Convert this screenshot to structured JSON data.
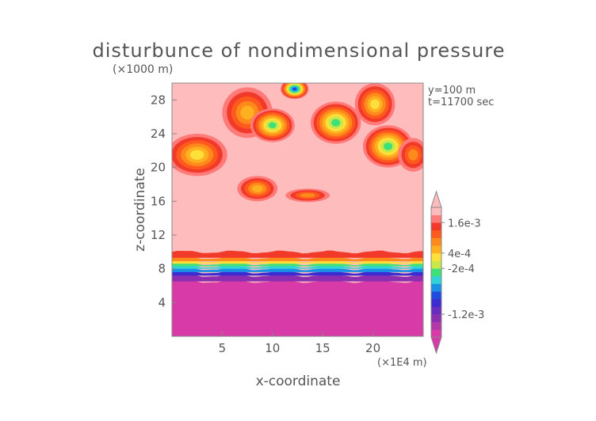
{
  "chart_data": {
    "type": "heatmap",
    "title": "disturbunce of nondimensional pressure",
    "y_scale_note": "(×1000 m)",
    "x_scale_note": "(×1E4 m)",
    "xlabel": "x-coordinate",
    "ylabel": "z-coordinate",
    "info_lines": [
      "y=100 m",
      "t=11700 sec"
    ],
    "xlim": [
      0,
      25
    ],
    "ylim": [
      0,
      30
    ],
    "xticks": [
      5,
      10,
      15,
      20
    ],
    "yticks": [
      4,
      8,
      12,
      16,
      20,
      24,
      28
    ],
    "xtick_labels": [
      "5",
      "10",
      "15",
      "20"
    ],
    "ytick_labels": [
      "4",
      "8",
      "12",
      "16",
      "20",
      "24",
      "28"
    ],
    "grid": false,
    "colorbar": {
      "placement": "right",
      "levels": [
        "-1.2e-3",
        "-2e-4",
        "4e-4",
        "1.6e-3"
      ],
      "colors": [
        "#d83aa8",
        "#b237a8",
        "#8b2fb0",
        "#6a2bc0",
        "#3c2bd1",
        "#1f4be0",
        "#1a8fe6",
        "#2fd3d8",
        "#3fe07a",
        "#c8e84a",
        "#ffe03a",
        "#ffb020",
        "#ff8a1c",
        "#ff5a1e",
        "#f23a2a",
        "#ff7a78",
        "#ffbcbc"
      ]
    },
    "field": {
      "background_level": "#ffbcbc",
      "surface_layer_top_z": 6.5,
      "transition_top_z": 10,
      "upper_cells": [
        {
          "x": 2.5,
          "z": 21.5,
          "rx": 3,
          "rz": 2.5,
          "peak": "#ffe03a"
        },
        {
          "x": 7.5,
          "z": 26.5,
          "rx": 2.5,
          "rz": 3,
          "peak": "#ffb020"
        },
        {
          "x": 10,
          "z": 25,
          "rx": 2.2,
          "rz": 2,
          "peak": "#3fe07a"
        },
        {
          "x": 12.2,
          "z": 29.3,
          "rx": 1.4,
          "rz": 1.2,
          "peak": "#1f4be0"
        },
        {
          "x": 16.3,
          "z": 25.3,
          "rx": 2.5,
          "rz": 2.5,
          "peak": "#3fe07a"
        },
        {
          "x": 20.2,
          "z": 27.5,
          "rx": 2,
          "rz": 2.5,
          "peak": "#ffe03a"
        },
        {
          "x": 21.5,
          "z": 22.5,
          "rx": 2.5,
          "rz": 2.5,
          "peak": "#3fe07a"
        },
        {
          "x": 24,
          "z": 21.5,
          "rx": 1.5,
          "rz": 2,
          "peak": "#ff8a1c"
        },
        {
          "x": 8.5,
          "z": 17.5,
          "rx": 2,
          "rz": 1.5,
          "peak": "#ffb020"
        },
        {
          "x": 13.5,
          "z": 16.7,
          "rx": 2.2,
          "rz": 0.8,
          "peak": "#ff8a1c"
        }
      ]
    }
  }
}
